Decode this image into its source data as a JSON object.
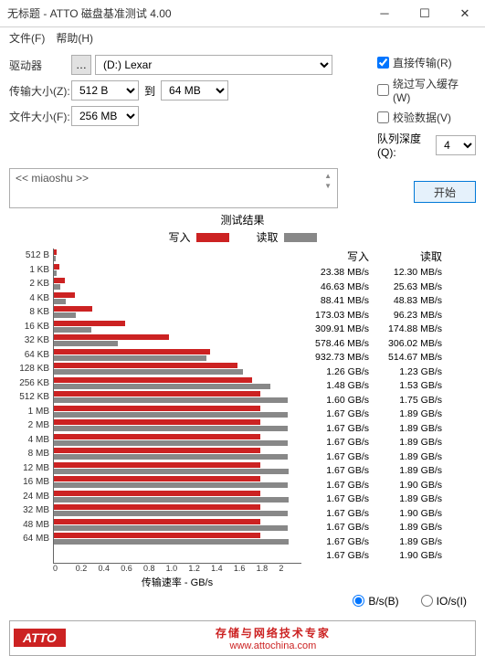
{
  "window": {
    "title": "无标题 - ATTO 磁盘基准测试 4.00"
  },
  "menu": {
    "file": "文件(F)",
    "help": "帮助(H)"
  },
  "labels": {
    "drive": "驱动器",
    "transfer_size": "传输大小(Z):",
    "to": "到",
    "file_size": "文件大小(F):",
    "direct_io": "直接传输(R)",
    "bypass_cache": "绕过写入缓存(W)",
    "verify": "校验数据(V)",
    "queue_depth": "队列深度(Q):",
    "start": "开始",
    "desc_placeholder": "<< miaoshu >>",
    "chart_title": "测试结果",
    "write": "写入",
    "read": "读取",
    "xaxis": "传输速率 - GB/s",
    "bps": "B/s(B)",
    "ios": "IO/s(I)"
  },
  "dropdowns": {
    "drive": "(D:) Lexar",
    "tx_from": "512 B",
    "tx_to": "64 MB",
    "file_size": "256 MB",
    "queue": "4"
  },
  "checks": {
    "direct_io": true,
    "bypass_cache": false,
    "verify": false
  },
  "colors": {
    "write": "#cc2222",
    "read": "#888888",
    "bg": "#ffffff",
    "grid": "#666666"
  },
  "chart": {
    "xmax": 2.0,
    "xtick_step": 0.2,
    "xticks": [
      "0",
      "0.2",
      "0.4",
      "0.6",
      "0.8",
      "1.0",
      "1.2",
      "1.4",
      "1.6",
      "1.8",
      "2"
    ],
    "rows": [
      {
        "label": "512 B",
        "write_v": 0.02338,
        "read_v": 0.0123,
        "write_t": "23.38 MB/s",
        "read_t": "12.30 MB/s"
      },
      {
        "label": "1 KB",
        "write_v": 0.04663,
        "read_v": 0.02563,
        "write_t": "46.63 MB/s",
        "read_t": "25.63 MB/s"
      },
      {
        "label": "2 KB",
        "write_v": 0.08841,
        "read_v": 0.04883,
        "write_t": "88.41 MB/s",
        "read_t": "48.83 MB/s"
      },
      {
        "label": "4 KB",
        "write_v": 0.17303,
        "read_v": 0.09623,
        "write_t": "173.03 MB/s",
        "read_t": "96.23 MB/s"
      },
      {
        "label": "8 KB",
        "write_v": 0.30991,
        "read_v": 0.17488,
        "write_t": "309.91 MB/s",
        "read_t": "174.88 MB/s"
      },
      {
        "label": "16 KB",
        "write_v": 0.57846,
        "read_v": 0.30602,
        "write_t": "578.46 MB/s",
        "read_t": "306.02 MB/s"
      },
      {
        "label": "32 KB",
        "write_v": 0.93273,
        "read_v": 0.51467,
        "write_t": "932.73 MB/s",
        "read_t": "514.67 MB/s"
      },
      {
        "label": "64 KB",
        "write_v": 1.26,
        "read_v": 1.23,
        "write_t": "1.26 GB/s",
        "read_t": "1.23 GB/s"
      },
      {
        "label": "128 KB",
        "write_v": 1.48,
        "read_v": 1.53,
        "write_t": "1.48 GB/s",
        "read_t": "1.53 GB/s"
      },
      {
        "label": "256 KB",
        "write_v": 1.6,
        "read_v": 1.75,
        "write_t": "1.60 GB/s",
        "read_t": "1.75 GB/s"
      },
      {
        "label": "512 KB",
        "write_v": 1.67,
        "read_v": 1.89,
        "write_t": "1.67 GB/s",
        "read_t": "1.89 GB/s"
      },
      {
        "label": "1 MB",
        "write_v": 1.67,
        "read_v": 1.89,
        "write_t": "1.67 GB/s",
        "read_t": "1.89 GB/s"
      },
      {
        "label": "2 MB",
        "write_v": 1.67,
        "read_v": 1.89,
        "write_t": "1.67 GB/s",
        "read_t": "1.89 GB/s"
      },
      {
        "label": "4 MB",
        "write_v": 1.67,
        "read_v": 1.89,
        "write_t": "1.67 GB/s",
        "read_t": "1.89 GB/s"
      },
      {
        "label": "8 MB",
        "write_v": 1.67,
        "read_v": 1.89,
        "write_t": "1.67 GB/s",
        "read_t": "1.89 GB/s"
      },
      {
        "label": "12 MB",
        "write_v": 1.67,
        "read_v": 1.9,
        "write_t": "1.67 GB/s",
        "read_t": "1.90 GB/s"
      },
      {
        "label": "16 MB",
        "write_v": 1.67,
        "read_v": 1.89,
        "write_t": "1.67 GB/s",
        "read_t": "1.89 GB/s"
      },
      {
        "label": "24 MB",
        "write_v": 1.67,
        "read_v": 1.9,
        "write_t": "1.67 GB/s",
        "read_t": "1.90 GB/s"
      },
      {
        "label": "32 MB",
        "write_v": 1.67,
        "read_v": 1.89,
        "write_t": "1.67 GB/s",
        "read_t": "1.89 GB/s"
      },
      {
        "label": "48 MB",
        "write_v": 1.67,
        "read_v": 1.89,
        "write_t": "1.67 GB/s",
        "read_t": "1.89 GB/s"
      },
      {
        "label": "64 MB",
        "write_v": 1.67,
        "read_v": 1.9,
        "write_t": "1.67 GB/s",
        "read_t": "1.90 GB/s"
      }
    ]
  },
  "footer": {
    "logo": "ATTO",
    "cn": "存储与网络技术专家",
    "url": "www.attochina.com"
  }
}
